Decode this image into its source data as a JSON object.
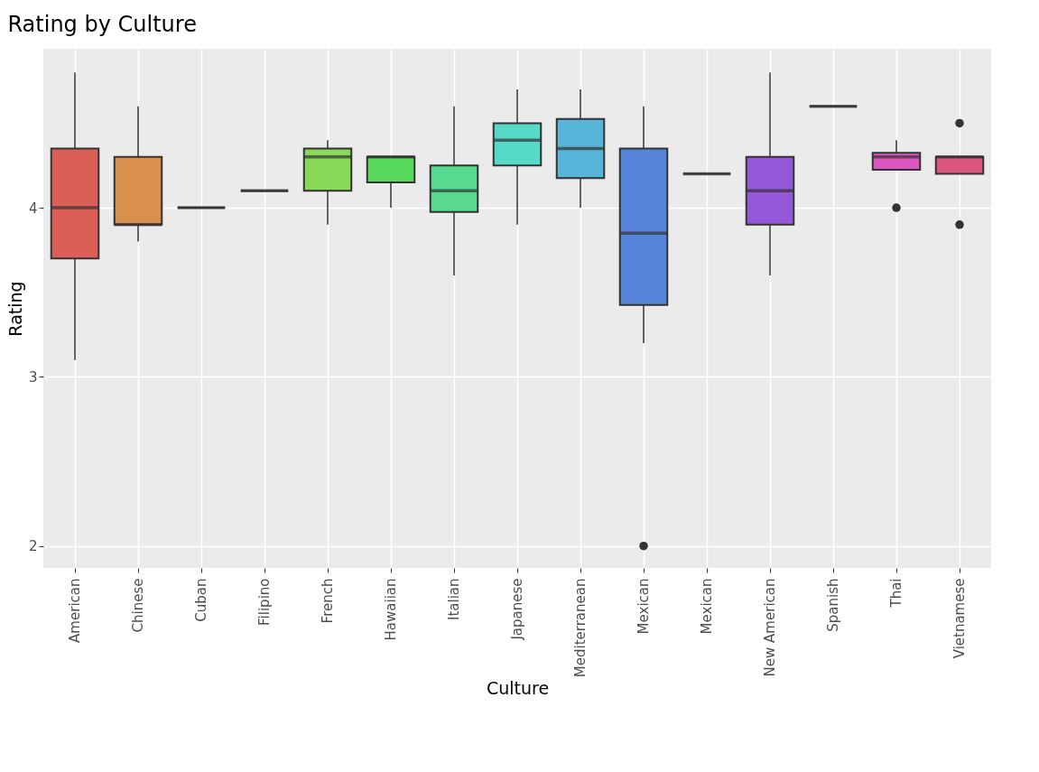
{
  "chart_data": {
    "type": "box",
    "title": "Rating by Culture",
    "xlabel": "Culture",
    "ylabel": "Rating",
    "categories": [
      "American",
      "Chinese",
      "Cuban",
      "Filipino",
      "French",
      "Hawaiian",
      "Italian",
      "Japanese",
      "Mediterranean",
      "Mexican",
      "Mexican",
      "New American",
      "Spanish",
      "Thai",
      "Vietnamese"
    ],
    "colors": [
      "#db5f57",
      "#d9904f",
      "#333333",
      "#333333",
      "#87d957",
      "#57d95c",
      "#57d98f",
      "#57d9c8",
      "#57b5d9",
      "#5784db",
      "#333333",
      "#9457d9",
      "#333333",
      "#dd55c0",
      "#d9577a"
    ],
    "boxes": [
      {
        "low": 3.1,
        "q1": 3.7,
        "median": 4.0,
        "q3": 4.35,
        "high": 4.8
      },
      {
        "low": 3.8,
        "q1": 3.9,
        "median": 3.9,
        "q3": 4.3,
        "high": 4.6
      },
      {
        "low": 4.0,
        "q1": 4.0,
        "median": 4.0,
        "q3": 4.0,
        "high": 4.0
      },
      {
        "low": 4.1,
        "q1": 4.1,
        "median": 4.1,
        "q3": 4.1,
        "high": 4.1
      },
      {
        "low": 3.9,
        "q1": 4.1,
        "median": 4.3,
        "q3": 4.35,
        "high": 4.4
      },
      {
        "low": 4.0,
        "q1": 4.15,
        "median": 4.3,
        "q3": 4.3,
        "high": 4.3
      },
      {
        "low": 3.6,
        "q1": 3.975,
        "median": 4.1,
        "q3": 4.25,
        "high": 4.6
      },
      {
        "low": 3.9,
        "q1": 4.25,
        "median": 4.4,
        "q3": 4.5,
        "high": 4.7
      },
      {
        "low": 4.0,
        "q1": 4.175,
        "median": 4.35,
        "q3": 4.525,
        "high": 4.7
      },
      {
        "low": 3.2,
        "q1": 3.425,
        "median": 3.85,
        "q3": 4.35,
        "high": 4.6,
        "outliers": [
          2.0
        ]
      },
      {
        "low": 4.2,
        "q1": 4.2,
        "median": 4.2,
        "q3": 4.2,
        "high": 4.2
      },
      {
        "low": 3.6,
        "q1": 3.9,
        "median": 4.1,
        "q3": 4.3,
        "high": 4.8
      },
      {
        "low": 4.6,
        "q1": 4.6,
        "median": 4.6,
        "q3": 4.6,
        "high": 4.6
      },
      {
        "low": 4.225,
        "q1": 4.225,
        "median": 4.3,
        "q3": 4.325,
        "high": 4.4,
        "outliers": [
          4.0
        ]
      },
      {
        "low": 4.2,
        "q1": 4.2,
        "median": 4.3,
        "q3": 4.3,
        "high": 4.3,
        "outliers": [
          4.5,
          3.9
        ]
      }
    ],
    "ylim": [
      1.87,
      4.94
    ],
    "yticks": [
      2,
      3,
      4
    ],
    "grid": true,
    "legend": false
  }
}
